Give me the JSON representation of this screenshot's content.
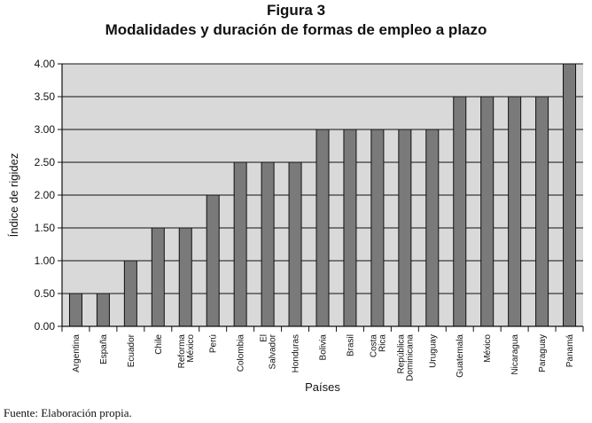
{
  "figure_label": "Figura 3",
  "title": "Modalidades y duración de formas de empleo a plazo",
  "source_note": "Fuente: Elaboración propia.",
  "chart_data": {
    "type": "bar",
    "title": "Modalidades y duración de formas de empleo a plazo",
    "xlabel": "Países",
    "ylabel": "Índice de rigidez",
    "ylim": [
      0,
      4
    ],
    "yticks": [
      "0.00",
      "0.50",
      "1.00",
      "1.50",
      "2.00",
      "2.50",
      "3.00",
      "3.50",
      "4.00"
    ],
    "grid": "horizontal",
    "categories": [
      "Argentina",
      "España",
      "Ecuador",
      "Chile",
      "Reforma México",
      "Perú",
      "Colombia",
      "El Salvador",
      "Honduras",
      "Bolivia",
      "Brasil",
      "Costa Rica",
      "República Dominicana",
      "Uruguay",
      "Guatemala",
      "México",
      "Nicaragua",
      "Paraguay",
      "Panamá"
    ],
    "values": [
      0.5,
      0.5,
      1.0,
      1.5,
      1.5,
      2.0,
      2.5,
      2.5,
      2.5,
      3.0,
      3.0,
      3.0,
      3.0,
      3.0,
      3.5,
      3.5,
      3.5,
      3.5,
      4.0
    ],
    "colors": {
      "plot_bg": "#d9d9d9",
      "bar": "#7a7a7a",
      "bar_edge": "#111111",
      "grid": "#111111"
    }
  }
}
